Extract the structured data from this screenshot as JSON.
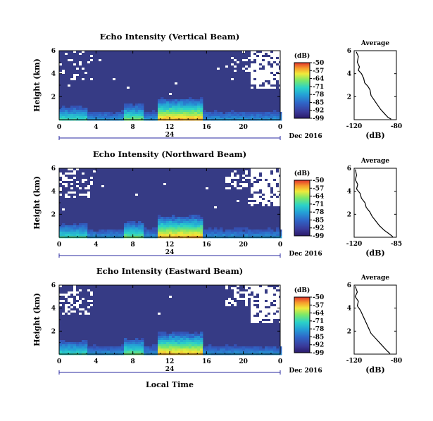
{
  "chart_data": [
    {
      "type": "heatmap",
      "title": "Echo Intensity (Vertical Beam)",
      "ylabel": "Height (km)",
      "x_ticks": [
        "0",
        "4",
        "8",
        "12",
        "16",
        "20",
        "0"
      ],
      "xlim": [
        0,
        24
      ],
      "y_ticks": [
        "2",
        "4",
        "6"
      ],
      "ylim": [
        0,
        6
      ],
      "date_label": "Dec 2016",
      "day_label": "24",
      "colorbar": {
        "label": "(dB)",
        "ticks": [
          "-50",
          "-57",
          "-64",
          "-71",
          "-78",
          "-85",
          "-92",
          "-99"
        ],
        "range": [
          -99,
          -50
        ]
      },
      "profile": {
        "title": "Average",
        "xlabel": "(dB)",
        "x_ticks": [
          "-120",
          "-80"
        ],
        "xlim": [
          -120,
          -80
        ],
        "y_ticks": [
          "2",
          "4",
          "6"
        ],
        "ylim": [
          0,
          6
        ],
        "points": [
          [
            -118,
            5.9
          ],
          [
            -116,
            5.5
          ],
          [
            -117,
            5.0
          ],
          [
            -115,
            4.6
          ],
          [
            -116,
            4.3
          ],
          [
            -113,
            4.0
          ],
          [
            -111,
            3.6
          ],
          [
            -110,
            3.2
          ],
          [
            -107,
            2.9
          ],
          [
            -105,
            2.6
          ],
          [
            -104,
            2.1
          ],
          [
            -101,
            1.7
          ],
          [
            -98,
            1.3
          ],
          [
            -95,
            0.9
          ],
          [
            -91,
            0.5
          ],
          [
            -88,
            0.2
          ],
          [
            -85,
            0.05
          ]
        ]
      }
    },
    {
      "type": "heatmap",
      "title": "Echo Intensity (Northward Beam)",
      "ylabel": "Height (km)",
      "x_ticks": [
        "0",
        "4",
        "8",
        "12",
        "16",
        "20",
        "0"
      ],
      "xlim": [
        0,
        24
      ],
      "y_ticks": [
        "2",
        "4",
        "6"
      ],
      "ylim": [
        0,
        6
      ],
      "date_label": "Dec 2016",
      "day_label": "24",
      "colorbar": {
        "label": "(dB)",
        "ticks": [
          "-50",
          "-57",
          "-64",
          "-71",
          "-78",
          "-85",
          "-92",
          "-99"
        ],
        "range": [
          -99,
          -50
        ]
      },
      "profile": {
        "title": "Average",
        "xlabel": "(dB)",
        "x_ticks": [
          "-120",
          "-85"
        ],
        "xlim": [
          -120,
          -85
        ],
        "y_ticks": [
          "2",
          "4",
          "6"
        ],
        "ylim": [
          0,
          6
        ],
        "points": [
          [
            -119,
            5.9
          ],
          [
            -118,
            5.4
          ],
          [
            -119,
            5.0
          ],
          [
            -117,
            4.6
          ],
          [
            -118,
            4.2
          ],
          [
            -115,
            3.8
          ],
          [
            -114,
            3.4
          ],
          [
            -111,
            3.0
          ],
          [
            -110,
            2.6
          ],
          [
            -107,
            2.2
          ],
          [
            -105,
            1.8
          ],
          [
            -102,
            1.4
          ],
          [
            -99,
            1.0
          ],
          [
            -95,
            0.6
          ],
          [
            -91,
            0.3
          ],
          [
            -88,
            0.05
          ]
        ]
      }
    },
    {
      "type": "heatmap",
      "title": "Echo Intensity (Eastward Beam)",
      "ylabel": "Height (km)",
      "xlabel": "Local Time",
      "x_ticks": [
        "0",
        "4",
        "8",
        "12",
        "16",
        "20",
        "0"
      ],
      "xlim": [
        0,
        24
      ],
      "y_ticks": [
        "2",
        "4",
        "6"
      ],
      "ylim": [
        0,
        6
      ],
      "date_label": "Dec 2016",
      "day_label": "24",
      "colorbar": {
        "label": "(dB)",
        "ticks": [
          "-50",
          "-57",
          "-64",
          "-71",
          "-78",
          "-85",
          "-92",
          "-99"
        ],
        "range": [
          -99,
          -50
        ]
      },
      "profile": {
        "title": "Average",
        "xlabel": "(dB)",
        "x_ticks": [
          "-120",
          "-80"
        ],
        "xlim": [
          -120,
          -80
        ],
        "y_ticks": [
          "2",
          "4",
          "6"
        ],
        "ylim": [
          0,
          6
        ],
        "points": [
          [
            -119,
            5.9
          ],
          [
            -117,
            5.4
          ],
          [
            -119,
            5.0
          ],
          [
            -116,
            4.6
          ],
          [
            -117,
            4.2
          ],
          [
            -114,
            3.8
          ],
          [
            -112,
            3.4
          ],
          [
            -110,
            3.0
          ],
          [
            -108,
            2.6
          ],
          [
            -106,
            2.2
          ],
          [
            -104,
            1.8
          ],
          [
            -100,
            1.4
          ],
          [
            -96,
            1.0
          ],
          [
            -92,
            0.6
          ],
          [
            -89,
            0.3
          ],
          [
            -86,
            0.05
          ]
        ]
      }
    }
  ],
  "colors": {
    "background_echo": "#363b85",
    "missing": "#ffffff",
    "colormap": [
      "#2b1a6b",
      "#3a3a9a",
      "#2f66c8",
      "#24a0d6",
      "#2bd2c8",
      "#7ae86a",
      "#f0ea3a",
      "#f79d2c",
      "#e2332c"
    ]
  }
}
